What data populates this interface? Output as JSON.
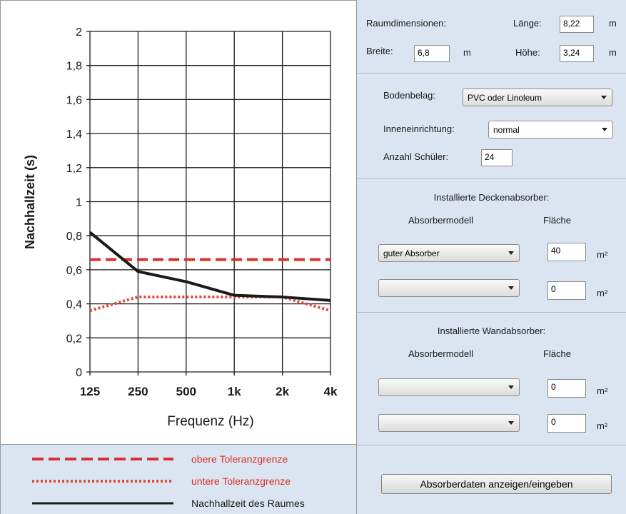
{
  "chart_data": {
    "type": "line",
    "ylabel": "Nachhallzeit (s)",
    "xlabel": "Frequenz (Hz)",
    "categories": [
      "125",
      "250",
      "500",
      "1k",
      "2k",
      "4k"
    ],
    "ylim": [
      0,
      2
    ],
    "yticks": [
      "0",
      "0,2",
      "0,4",
      "0,6",
      "0,8",
      "1",
      "1,2",
      "1,4",
      "1,6",
      "1,8",
      "2"
    ],
    "grid": true,
    "series": [
      {
        "name": "obere Toleranzgrenze",
        "values": [
          0.66,
          0.66,
          0.66,
          0.66,
          0.66,
          0.66
        ],
        "color": "#d9322a",
        "style": "dashed"
      },
      {
        "name": "untere Toleranzgrenze",
        "values": [
          0.36,
          0.44,
          0.44,
          0.44,
          0.44,
          0.36
        ],
        "color": "#e04a3a",
        "style": "dotted"
      },
      {
        "name": "Nachhallzeit des Raumes",
        "values": [
          0.82,
          0.59,
          0.53,
          0.45,
          0.44,
          0.42
        ],
        "color": "#1a1a1a",
        "style": "solid"
      }
    ]
  },
  "legend": {
    "upper": "obere Toleranzgrenze",
    "lower": "untere Toleranzgrenze",
    "room": "Nachhallzeit des Raumes",
    "upper_color": "#d9322a",
    "lower_color": "#e04a3a",
    "room_color": "#1a1a1a"
  },
  "room": {
    "title": "Raumdimensionen:",
    "length_label": "Länge:",
    "length_value": "8,22",
    "width_label": "Breite:",
    "width_value": "6,8",
    "height_label": "Höhe:",
    "height_value": "3,24",
    "unit": "m"
  },
  "interior": {
    "floor_label": "Bodenbelag:",
    "floor_value": "PVC oder Linoleum",
    "furnishing_label": "Inneneinrichtung:",
    "furnishing_value": "normal",
    "students_label": "Anzahl Schüler:",
    "students_value": "24"
  },
  "ceiling": {
    "title": "Installierte Deckenabsorber:",
    "model_header": "Absorbermodell",
    "area_header": "Fläche",
    "rows": [
      {
        "model": "guter Absorber",
        "area": "40",
        "unit": "m²"
      },
      {
        "model": "",
        "area": "0",
        "unit": "m²"
      }
    ]
  },
  "wall": {
    "title": "Installierte Wandabsorber:",
    "model_header": "Absorbermodell",
    "area_header": "Fläche",
    "rows": [
      {
        "model": "",
        "area": "0",
        "unit": "m²"
      },
      {
        "model": "",
        "area": "0",
        "unit": "m²"
      }
    ]
  },
  "button": {
    "label": "Absorberdaten anzeigen/eingeben"
  }
}
